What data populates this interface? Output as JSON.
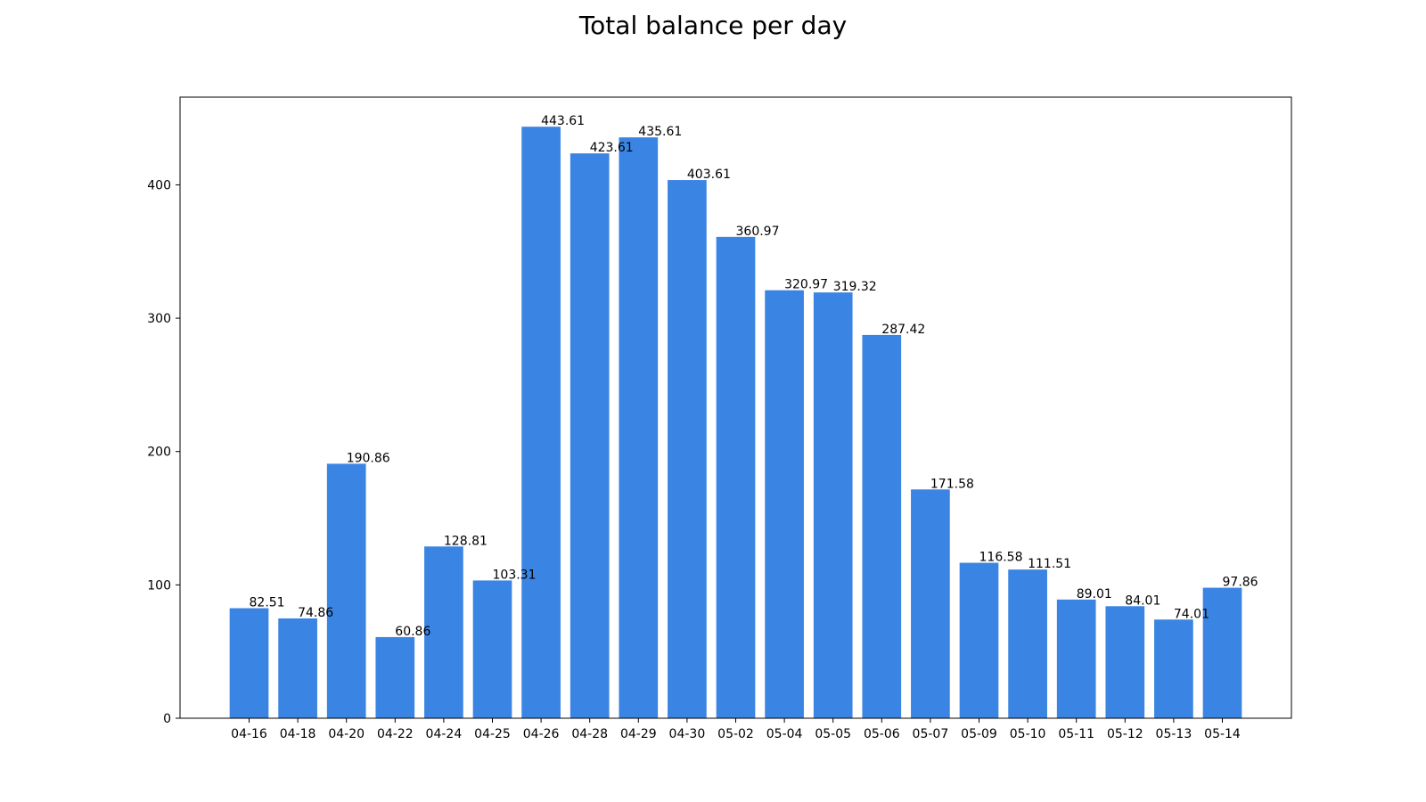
{
  "chart_data": {
    "type": "bar",
    "title": "Total balance per day",
    "xlabel": "",
    "ylabel": "",
    "categories": [
      "04-16",
      "04-18",
      "04-20",
      "04-22",
      "04-24",
      "04-25",
      "04-26",
      "04-28",
      "04-29",
      "04-30",
      "05-02",
      "05-04",
      "05-05",
      "05-06",
      "05-07",
      "05-09",
      "05-10",
      "05-11",
      "05-12",
      "05-13",
      "05-14"
    ],
    "values": [
      82.51,
      74.86,
      190.86,
      60.86,
      128.81,
      103.31,
      443.61,
      423.61,
      435.61,
      403.61,
      360.97,
      320.97,
      319.32,
      287.42,
      171.58,
      116.58,
      111.51,
      89.01,
      84.01,
      74.01,
      97.86
    ],
    "data_labels": [
      "82.51",
      "74.86",
      "190.86",
      "60.86",
      "128.81",
      "103.31",
      "443.61",
      "423.61",
      "435.61",
      "403.61",
      "360.97",
      "320.97",
      "319.32",
      "287.42",
      "171.58",
      "116.58",
      "111.51",
      "89.01",
      "84.01",
      "74.01",
      "97.86"
    ],
    "ylim": [
      0,
      465.79
    ],
    "yticks": [
      0,
      100,
      200,
      300,
      400
    ],
    "ytick_labels": [
      "0",
      "100",
      "200",
      "300",
      "400"
    ],
    "bar_color": "#3a84e3",
    "grid": false,
    "legend": "none"
  }
}
